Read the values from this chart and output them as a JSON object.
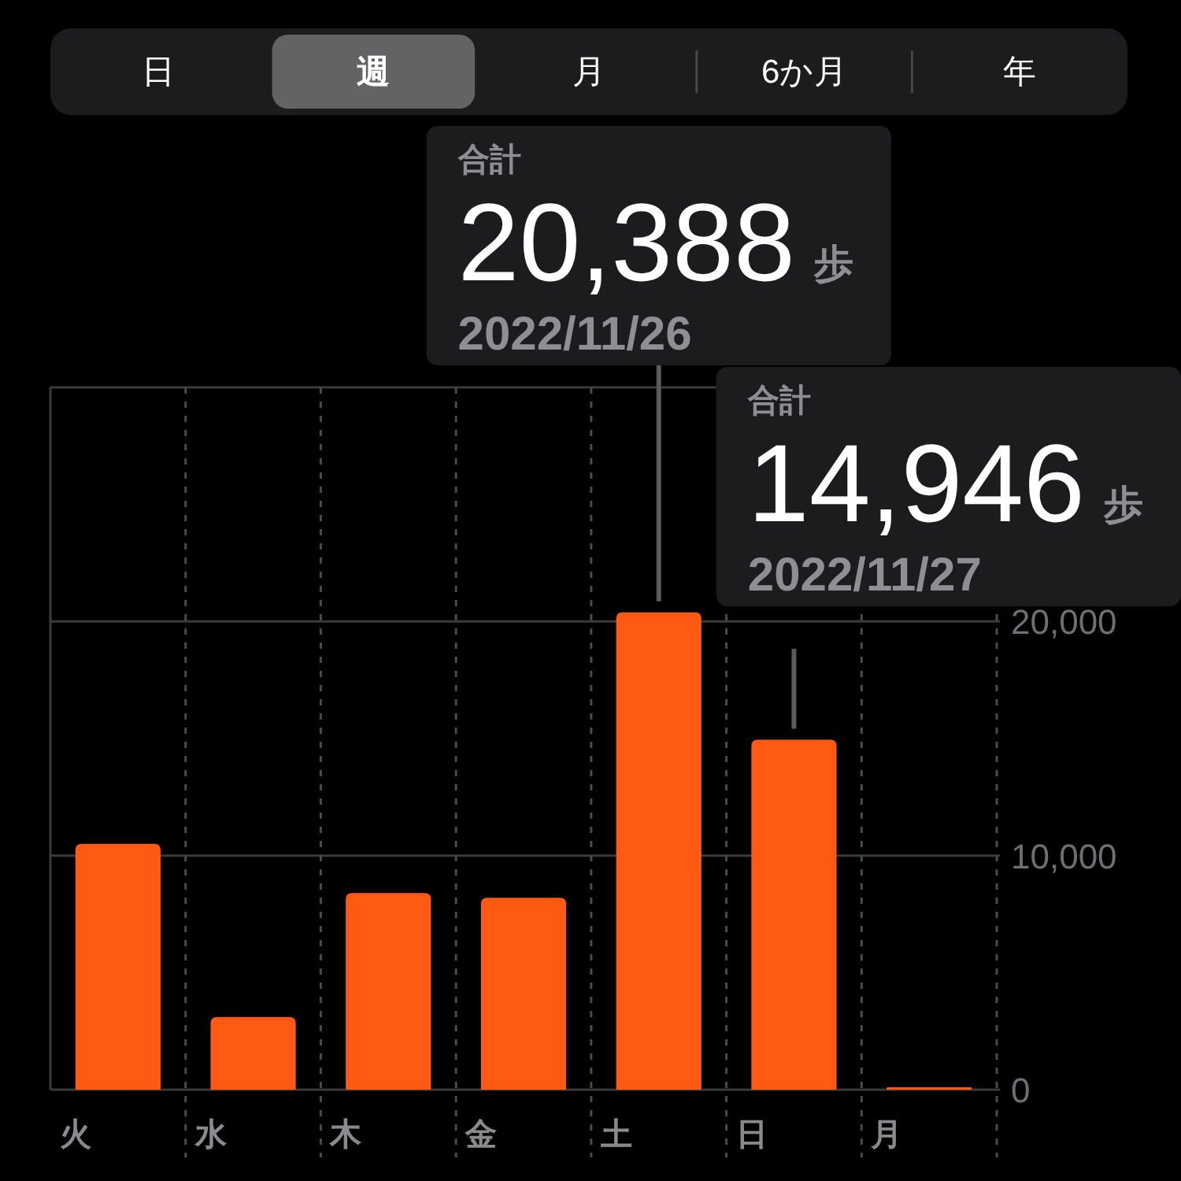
{
  "chart_data": {
    "type": "bar",
    "categories": [
      "火",
      "水",
      "木",
      "金",
      "土",
      "日",
      "月"
    ],
    "values": [
      10500,
      3100,
      8400,
      8200,
      20388,
      14946,
      100
    ],
    "color": "#ff5a14",
    "value_labels": [
      null,
      null,
      null,
      null,
      "20,388",
      "14,946",
      null
    ],
    "ylim": [
      0,
      30000
    ],
    "yticks": [
      0,
      {
        "value": 10000,
        "label": "10,000"
      },
      {
        "value": 20000,
        "label": "20,000"
      },
      {
        "value": 30000,
        "label": null
      }
    ],
    "grid": true,
    "annotations": [
      "日",
      "週",
      "月",
      "6か月",
      "年",
      "合計",
      "歩",
      "2022/11/26",
      "合計",
      "歩",
      "2022/11/27"
    ]
  }
}
